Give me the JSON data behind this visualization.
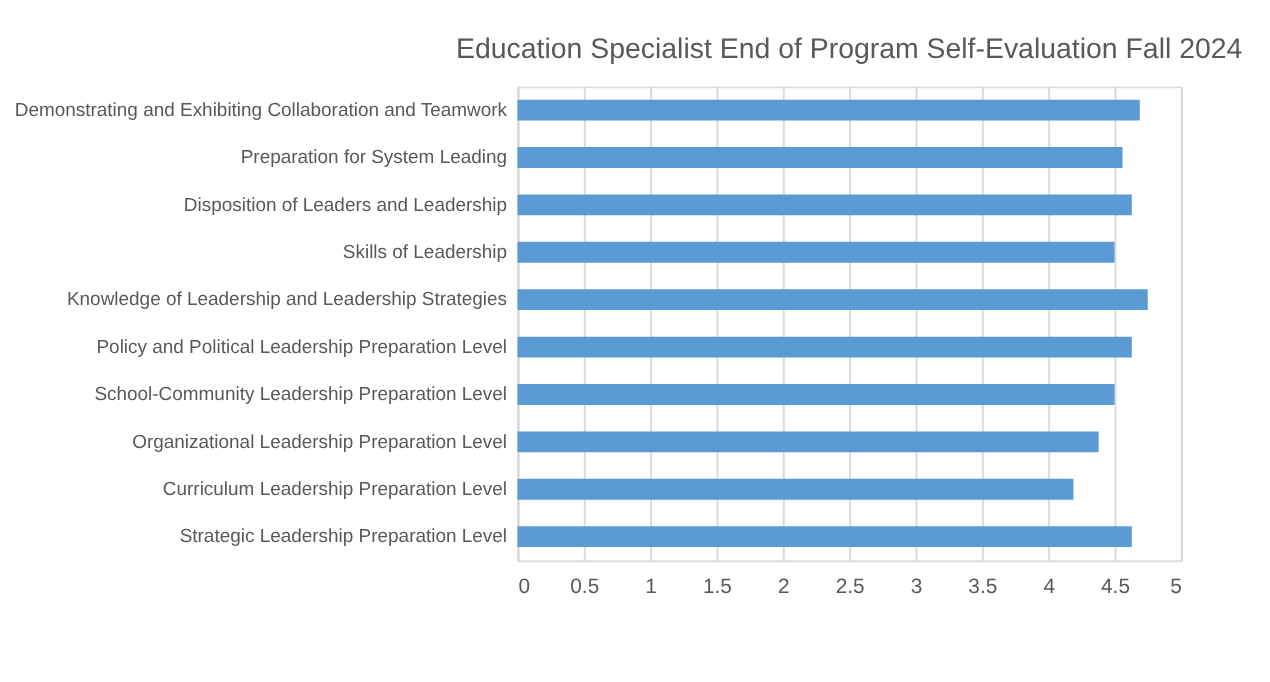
{
  "chart_data": {
    "type": "bar",
    "orientation": "horizontal",
    "title": "Education Specialist End of Program Self-Evaluation Fall 2024",
    "categories": [
      "Demonstrating and Exhibiting Collaboration and Teamwork",
      "Preparation for System Leading",
      "Disposition of Leaders and Leadership",
      "Skills of Leadership",
      "Knowledge of Leadership and Leadership Strategies",
      "Policy and Political Leadership Preparation Level",
      "School-Community Leadership Preparation Level",
      "Organizational Leadership Preparation Level",
      "Curriculum Leadership Preparation Level",
      "Strategic Leadership Preparation Level"
    ],
    "values": [
      4.69,
      4.56,
      4.63,
      4.5,
      4.75,
      4.63,
      4.5,
      4.38,
      4.19,
      4.63
    ],
    "color": "#5b9bd5",
    "xlim": [
      0,
      5
    ],
    "xticks": [
      0,
      0.5,
      1,
      1.5,
      2,
      2.5,
      3,
      3.5,
      4,
      4.5,
      5
    ],
    "grid": "x"
  }
}
